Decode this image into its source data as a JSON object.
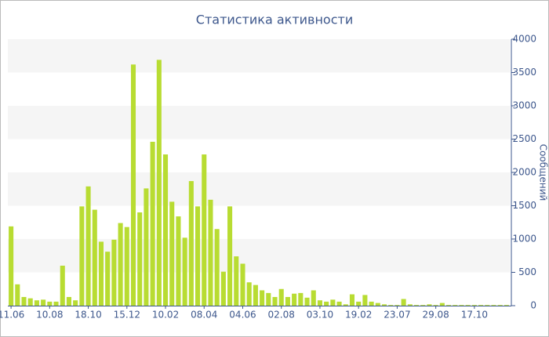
{
  "chart_data": {
    "type": "bar",
    "title": "Статистика активности",
    "y_label": "Сообщений",
    "categories": [
      "11.06",
      null,
      null,
      null,
      null,
      null,
      "10.08",
      null,
      null,
      null,
      null,
      null,
      "18.10",
      null,
      null,
      null,
      null,
      null,
      "15.12",
      null,
      null,
      null,
      null,
      null,
      "10.02",
      null,
      null,
      null,
      null,
      null,
      "08.04",
      null,
      null,
      null,
      null,
      null,
      "04.06",
      null,
      null,
      null,
      null,
      null,
      "02.08",
      null,
      null,
      null,
      null,
      null,
      "03.10",
      null,
      null,
      null,
      null,
      null,
      "19.02",
      null,
      null,
      null,
      null,
      null,
      "23.07",
      null,
      null,
      null,
      null,
      null,
      "29.08",
      null,
      null,
      null,
      null,
      null,
      "17.10",
      null,
      null,
      null,
      null,
      null
    ],
    "values": [
      1190,
      320,
      130,
      110,
      80,
      90,
      60,
      60,
      600,
      130,
      80,
      1490,
      1790,
      1440,
      960,
      810,
      990,
      1240,
      1180,
      3620,
      1400,
      1760,
      2460,
      3690,
      2270,
      1560,
      1340,
      1020,
      1870,
      1490,
      2270,
      1590,
      1150,
      510,
      1490,
      740,
      630,
      350,
      310,
      230,
      190,
      130,
      250,
      130,
      180,
      190,
      120,
      230,
      80,
      60,
      90,
      60,
      20,
      170,
      60,
      160,
      60,
      40,
      20,
      10,
      10,
      100,
      20,
      10,
      10,
      20,
      10,
      40,
      10,
      10,
      10,
      10,
      10,
      10,
      10,
      10,
      10,
      10
    ],
    "color": "#b8dc32",
    "ylim": [
      0,
      4000
    ],
    "yticks": [
      0,
      500,
      1000,
      1500,
      2000,
      2500,
      3000,
      3500,
      4000
    ],
    "grid": "bands"
  }
}
